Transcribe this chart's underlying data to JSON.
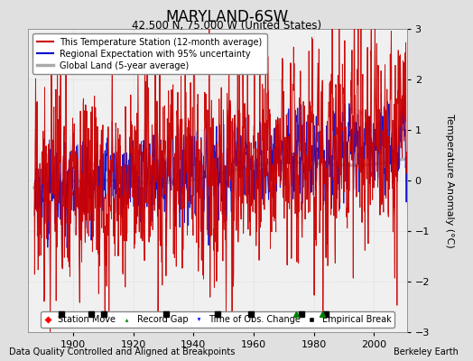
{
  "title": "MARYLAND-6SW",
  "subtitle": "42.500 N, 75.000 W (United States)",
  "xlabel_bottom": "Data Quality Controlled and Aligned at Breakpoints",
  "xlabel_right": "Berkeley Earth",
  "ylabel": "Temperature Anomaly (°C)",
  "ylim": [
    -3,
    3
  ],
  "xlim": [
    1885,
    2011
  ],
  "yticks": [
    -3,
    -2,
    -1,
    0,
    1,
    2,
    3
  ],
  "xticks": [
    1900,
    1920,
    1940,
    1960,
    1980,
    2000
  ],
  "background_color": "#e0e0e0",
  "plot_bg_color": "#f0f0f0",
  "station_color": "#cc0000",
  "regional_color": "#0000cc",
  "regional_fill_color": "#9999cc",
  "global_color": "#aaaaaa",
  "markers": {
    "station_move": {
      "symbol": "D",
      "color": "red",
      "x": []
    },
    "record_gap": {
      "symbol": "^",
      "color": "green",
      "x": [
        1974,
        1983
      ]
    },
    "time_obs": {
      "symbol": "v",
      "color": "blue",
      "x": []
    },
    "empirical_break": {
      "symbol": "s",
      "color": "black",
      "x": [
        1896,
        1906,
        1910,
        1931,
        1948,
        1959,
        1976,
        1984
      ]
    }
  },
  "legend_items": [
    {
      "label": "This Temperature Station (12-month average)",
      "color": "#cc0000"
    },
    {
      "label": "Regional Expectation with 95% uncertainty",
      "color": "#0000cc"
    },
    {
      "label": "Global Land (5-year average)",
      "color": "#aaaaaa"
    }
  ],
  "seed": 17
}
